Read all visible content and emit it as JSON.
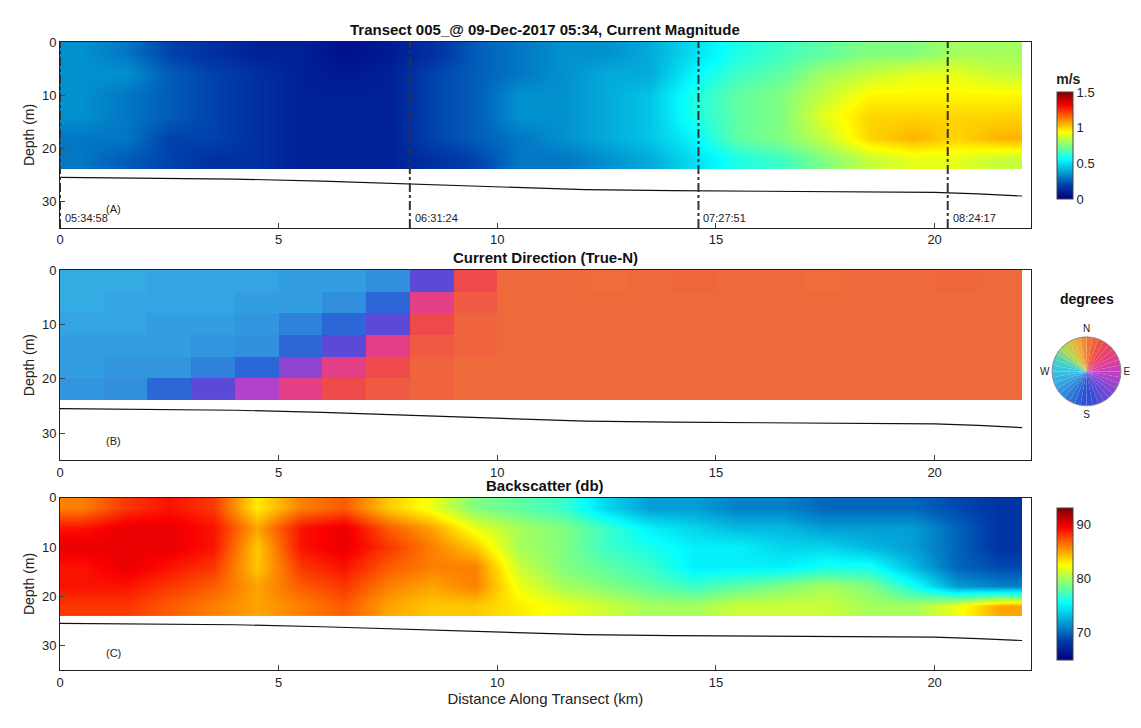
{
  "chart_data": [
    {
      "type": "heatmap",
      "title": "Transect 005_@ 09-Dec-2017 05:34, Current Magnitude",
      "panel_label": "(A)",
      "ylabel": "Depth (m)",
      "xlim": [
        0,
        22.2
      ],
      "xticks": [
        0,
        5,
        10,
        15,
        20
      ],
      "ylim": [
        35,
        0
      ],
      "yticks": [
        0,
        10,
        20,
        30
      ],
      "x": [
        0.5,
        1.5,
        2.5,
        3.5,
        4.5,
        5.5,
        6.5,
        7.5,
        8.5,
        9.5,
        10.5,
        11.5,
        12.5,
        13.5,
        14.5,
        15.5,
        16.5,
        17.5,
        18.5,
        19.5,
        20.5,
        21.5
      ],
      "y": [
        2,
        6,
        10,
        14,
        18,
        22
      ],
      "z": [
        [
          0.35,
          0.3,
          0.2,
          0.15,
          0.1,
          0.1,
          0.05,
          0.08,
          0.15,
          0.25,
          0.3,
          0.35,
          0.35,
          0.4,
          0.5,
          0.6,
          0.65,
          0.7,
          0.75,
          0.75,
          0.8,
          0.8
        ],
        [
          0.35,
          0.35,
          0.25,
          0.2,
          0.15,
          0.1,
          0.08,
          0.1,
          0.2,
          0.25,
          0.3,
          0.35,
          0.4,
          0.4,
          0.55,
          0.65,
          0.7,
          0.8,
          0.85,
          0.9,
          0.9,
          0.85
        ],
        [
          0.35,
          0.3,
          0.25,
          0.2,
          0.15,
          0.1,
          0.1,
          0.1,
          0.2,
          0.25,
          0.35,
          0.35,
          0.4,
          0.45,
          0.6,
          0.7,
          0.75,
          0.85,
          0.95,
          0.95,
          0.95,
          0.95
        ],
        [
          0.35,
          0.3,
          0.25,
          0.2,
          0.15,
          0.1,
          0.1,
          0.1,
          0.2,
          0.25,
          0.35,
          0.35,
          0.4,
          0.45,
          0.6,
          0.7,
          0.75,
          0.9,
          1.0,
          1.0,
          1.0,
          1.0
        ],
        [
          0.3,
          0.3,
          0.2,
          0.2,
          0.15,
          0.1,
          0.1,
          0.1,
          0.2,
          0.25,
          0.3,
          0.35,
          0.4,
          0.45,
          0.55,
          0.7,
          0.75,
          0.85,
          1.0,
          1.05,
          1.0,
          1.05
        ],
        [
          0.3,
          0.25,
          0.2,
          0.15,
          0.15,
          0.1,
          0.1,
          0.1,
          0.15,
          0.2,
          0.3,
          0.3,
          0.35,
          0.4,
          0.5,
          0.6,
          0.65,
          0.75,
          0.85,
          0.9,
          0.9,
          0.85
        ]
      ],
      "colorbar": {
        "title": "m/s",
        "range": [
          0,
          1.5
        ],
        "ticks": [
          0,
          0.5,
          1,
          1.5
        ]
      },
      "bottom": {
        "x": [
          0,
          2,
          4,
          6,
          8,
          10,
          12,
          14,
          16,
          18,
          20,
          21,
          22
        ],
        "values": [
          25.5,
          25.6,
          25.8,
          26.2,
          26.7,
          27.3,
          27.8,
          28,
          28.1,
          28.1,
          28.3,
          28.6,
          29
        ]
      },
      "time_marks": [
        {
          "x": 0,
          "label": "05:34:58"
        },
        {
          "x": 8.0,
          "label": "06:31:24"
        },
        {
          "x": 14.6,
          "label": "07:27:51"
        },
        {
          "x": 20.3,
          "label": "08:24:17"
        }
      ]
    },
    {
      "type": "heatmap",
      "title": "Current Direction (True-N)",
      "panel_label": "(B)",
      "ylabel": "Depth (m)",
      "xlim": [
        0,
        22.2
      ],
      "xticks": [
        0,
        5,
        10,
        15,
        20
      ],
      "ylim": [
        35,
        0
      ],
      "yticks": [
        0,
        10,
        20,
        30
      ],
      "x": [
        0.5,
        1.5,
        2.5,
        3.5,
        4.5,
        5.5,
        6.5,
        7.5,
        8.5,
        9.5,
        10.5,
        11.5,
        12.5,
        13.5,
        14.5,
        15.5,
        16.5,
        17.5,
        18.5,
        19.5,
        20.5,
        21.5
      ],
      "y": [
        2,
        6,
        10,
        14,
        18,
        22
      ],
      "z": [
        [
          250,
          250,
          245,
          245,
          245,
          240,
          240,
          230,
          150,
          30,
          12,
          12,
          10,
          12,
          14,
          12,
          12,
          10,
          12,
          12,
          14,
          12
        ],
        [
          250,
          245,
          245,
          245,
          240,
          240,
          230,
          200,
          60,
          20,
          12,
          12,
          12,
          12,
          12,
          12,
          12,
          12,
          12,
          12,
          12,
          12
        ],
        [
          245,
          245,
          240,
          240,
          235,
          220,
          200,
          150,
          30,
          15,
          12,
          12,
          12,
          12,
          12,
          12,
          12,
          12,
          12,
          12,
          12,
          12
        ],
        [
          240,
          240,
          240,
          235,
          230,
          200,
          150,
          60,
          20,
          15,
          12,
          12,
          12,
          12,
          12,
          12,
          12,
          12,
          12,
          12,
          12,
          12
        ],
        [
          240,
          235,
          235,
          220,
          200,
          120,
          60,
          30,
          15,
          12,
          12,
          12,
          12,
          12,
          12,
          12,
          12,
          12,
          12,
          12,
          12,
          12
        ],
        [
          235,
          230,
          200,
          150,
          100,
          60,
          30,
          20,
          15,
          12,
          12,
          12,
          12,
          12,
          12,
          12,
          12,
          12,
          12,
          12,
          12,
          12
        ]
      ],
      "colorwheel": {
        "title": "degrees",
        "range": [
          0,
          360
        ],
        "ticks": [
          {
            "value": 0,
            "label": "N"
          },
          {
            "value": 90,
            "label": "E"
          },
          {
            "value": 180,
            "label": "S"
          },
          {
            "value": 270,
            "label": "W"
          }
        ]
      },
      "bottom": {
        "x": [
          0,
          2,
          4,
          6,
          8,
          10,
          12,
          14,
          16,
          18,
          20,
          21,
          22
        ],
        "values": [
          25.5,
          25.6,
          25.8,
          26.2,
          26.7,
          27.3,
          27.8,
          28,
          28.1,
          28.1,
          28.3,
          28.6,
          29
        ]
      }
    },
    {
      "type": "heatmap",
      "title": "Backscatter (db)",
      "panel_label": "(C)",
      "ylabel": "Depth (m)",
      "xlabel": "Distance Along Transect (km)",
      "xlim": [
        0,
        22.2
      ],
      "xticks": [
        0,
        5,
        10,
        15,
        20
      ],
      "ylim": [
        35,
        0
      ],
      "yticks": [
        0,
        10,
        20,
        30
      ],
      "x": [
        0.5,
        1.5,
        2.5,
        3.5,
        4.5,
        5.5,
        6.5,
        7.5,
        8.5,
        9.5,
        10.5,
        11.5,
        12.5,
        13.5,
        14.5,
        15.5,
        16.5,
        17.5,
        18.5,
        19.5,
        20.5,
        21.5
      ],
      "y": [
        2,
        6,
        10,
        14,
        18,
        22
      ],
      "z": [
        [
          86,
          88,
          89,
          88,
          83,
          86,
          87,
          84,
          82,
          79,
          78,
          77,
          74,
          72,
          72,
          71,
          71,
          70,
          70,
          70,
          69,
          68
        ],
        [
          89,
          90,
          90,
          89,
          85,
          89,
          90,
          87,
          85,
          82,
          80,
          79,
          77,
          75,
          74,
          73,
          73,
          72,
          72,
          72,
          70,
          68
        ],
        [
          90,
          90,
          90,
          89,
          84,
          89,
          90,
          88,
          86,
          84,
          80,
          79,
          77,
          76,
          75,
          75,
          74,
          74,
          73,
          72,
          70,
          68
        ],
        [
          89,
          90,
          89,
          88,
          84,
          88,
          89,
          87,
          86,
          86,
          81,
          79,
          78,
          77,
          75,
          75,
          75,
          76,
          76,
          73,
          70,
          69
        ],
        [
          89,
          89,
          88,
          87,
          85,
          87,
          88,
          86,
          85,
          86,
          82,
          80,
          79,
          78,
          77,
          78,
          79,
          80,
          79,
          76,
          72,
          71
        ],
        [
          88,
          88,
          87,
          86,
          85,
          86,
          87,
          85,
          84,
          84,
          83,
          82,
          81,
          80,
          80,
          81,
          81,
          81,
          80,
          80,
          82,
          85
        ]
      ],
      "colorbar": {
        "range": [
          65,
          93
        ],
        "ticks": [
          70,
          80,
          90
        ]
      },
      "bottom": {
        "x": [
          0,
          2,
          4,
          6,
          8,
          10,
          12,
          14,
          16,
          18,
          20,
          21,
          22
        ],
        "values": [
          25.5,
          25.6,
          25.8,
          26.2,
          26.7,
          27.3,
          27.8,
          28,
          28.1,
          28.1,
          28.3,
          28.6,
          29
        ]
      }
    }
  ]
}
